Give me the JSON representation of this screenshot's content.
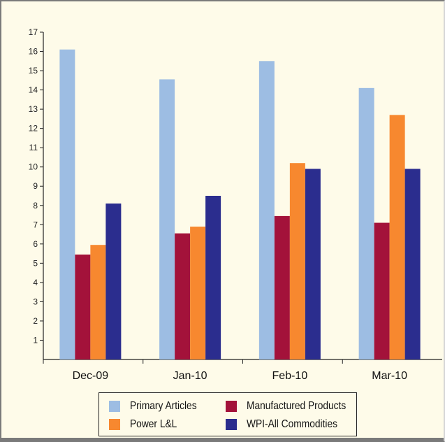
{
  "chart_data": {
    "type": "bar",
    "categories": [
      "Dec-09",
      "Jan-10",
      "Feb-10",
      "Mar-10"
    ],
    "series": [
      {
        "name": "Primary Articles",
        "color": "#9dbde3",
        "values": [
          16.1,
          14.55,
          15.5,
          14.1
        ]
      },
      {
        "name": "Manufactured Products",
        "color": "#a3123a",
        "values": [
          5.45,
          6.55,
          7.45,
          7.1
        ]
      },
      {
        "name": "Power L&L",
        "color": "#f7882f",
        "values": [
          5.95,
          6.9,
          10.2,
          12.7
        ]
      },
      {
        "name": "WPI-All Commodities",
        "color": "#2b2d8e",
        "values": [
          8.1,
          8.5,
          9.9,
          9.9
        ]
      }
    ],
    "yticks": [
      1,
      2,
      3,
      4,
      5,
      6,
      7,
      8,
      9,
      10,
      11,
      12,
      13,
      14,
      15,
      16,
      17
    ],
    "ylim": [
      0,
      17
    ],
    "grid": false,
    "legend_position": "bottom"
  },
  "legend": {
    "items": [
      {
        "label": "Primary Articles",
        "color": "#9dbde3"
      },
      {
        "label": "Manufactured Products",
        "color": "#a3123a"
      },
      {
        "label": "Power L&L",
        "color": "#f7882f"
      },
      {
        "label": "WPI-All Commodities",
        "color": "#2b2d8e"
      }
    ]
  }
}
